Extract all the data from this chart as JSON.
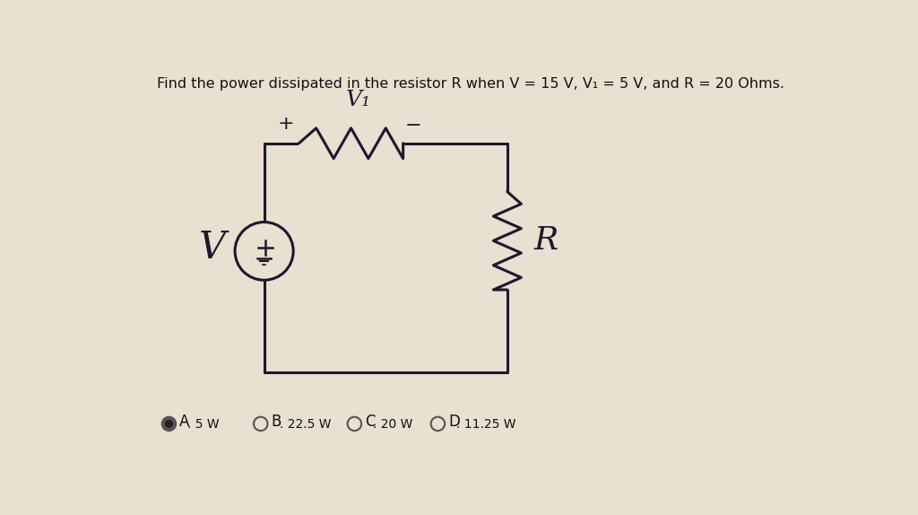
{
  "title": "Find the power dissipated in the resistor R when V = 15 V, V₁ = 5 V, and R = 20 Ohms.",
  "bg_color": "#e8e0d0",
  "circuit_color": "#1a1a2e",
  "answer_options": [
    "A. 5 W",
    "B. 22.5 W",
    "C. 20 W",
    "D. 11.25 W"
  ],
  "selected_answer": 0,
  "fig_width": 10.24,
  "fig_height": 5.74
}
